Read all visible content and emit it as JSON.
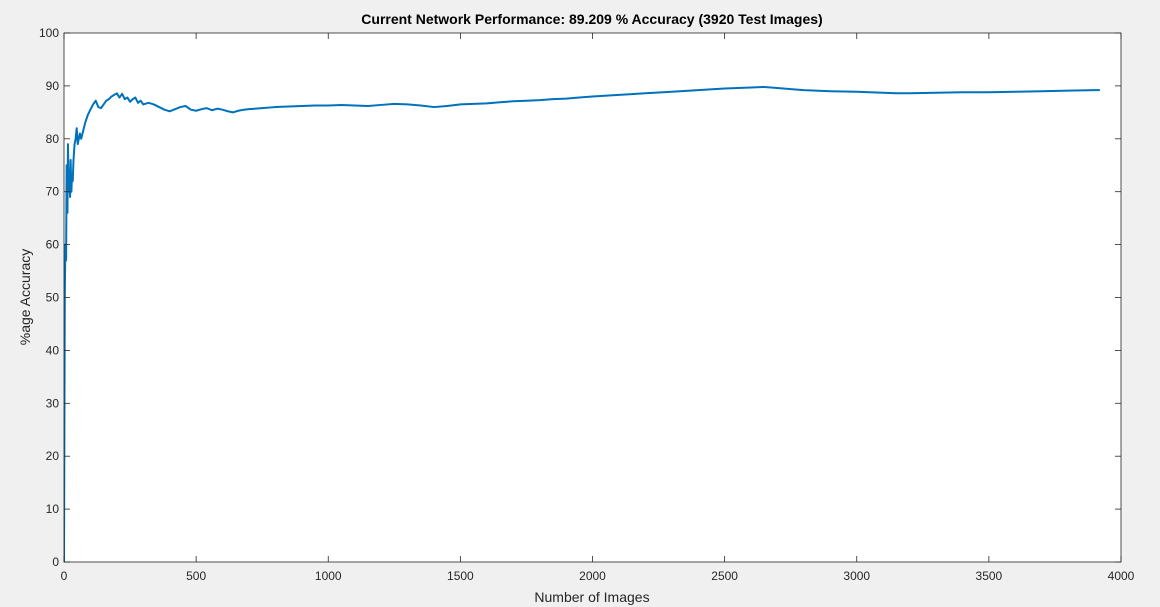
{
  "chart_data": {
    "type": "line",
    "title": "Current Network Performance: 89.209 % Accuracy (3920 Test Images)",
    "xlabel": "Number of Images",
    "ylabel": "%age Accuracy",
    "xlim": [
      0,
      4000
    ],
    "ylim": [
      0,
      100
    ],
    "xticks": [
      0,
      500,
      1000,
      1500,
      2000,
      2500,
      3000,
      3500,
      4000
    ],
    "yticks": [
      0,
      10,
      20,
      30,
      40,
      50,
      60,
      70,
      80,
      90,
      100
    ],
    "grid": false,
    "background": "#f0f0f0",
    "axes_color": "#ffffff",
    "line_color": "#0072bd",
    "series": [
      {
        "x": [
          0,
          3,
          5,
          8,
          10,
          13,
          15,
          18,
          20,
          23,
          25,
          28,
          30,
          33,
          36,
          40,
          44,
          48,
          52,
          56,
          60,
          65,
          70,
          75,
          80,
          90,
          100,
          110,
          120,
          130,
          140,
          150,
          160,
          170,
          180,
          190,
          200,
          210,
          220,
          230,
          240,
          250,
          260,
          270,
          280,
          290,
          300,
          320,
          340,
          360,
          380,
          400,
          420,
          440,
          460,
          480,
          500,
          520,
          540,
          560,
          580,
          600,
          620,
          640,
          660,
          680,
          700,
          750,
          800,
          850,
          900,
          950,
          1000,
          1050,
          1100,
          1150,
          1200,
          1250,
          1300,
          1350,
          1400,
          1450,
          1500,
          1550,
          1600,
          1650,
          1700,
          1750,
          1800,
          1850,
          1900,
          1950,
          2000,
          2100,
          2200,
          2300,
          2400,
          2500,
          2550,
          2600,
          2650,
          2700,
          2750,
          2800,
          2900,
          3000,
          3100,
          3150,
          3200,
          3300,
          3400,
          3500,
          3600,
          3700,
          3800,
          3900,
          3920
        ],
        "y": [
          0,
          50,
          60,
          57,
          75,
          66,
          79,
          70,
          74,
          69,
          76,
          70,
          73,
          72,
          76,
          79,
          80,
          82,
          79,
          80,
          81,
          80,
          81,
          82,
          83,
          84.5,
          85.5,
          86.5,
          87.2,
          86,
          85.8,
          86.5,
          87.2,
          87.5,
          88,
          88.3,
          88.6,
          87.8,
          88.5,
          87.5,
          87.8,
          87,
          87.5,
          87.8,
          86.8,
          87.2,
          86.5,
          86.8,
          86.5,
          86,
          85.5,
          85.2,
          85.6,
          86,
          86.2,
          85.5,
          85.3,
          85.6,
          85.8,
          85.4,
          85.7,
          85.5,
          85.2,
          85,
          85.3,
          85.5,
          85.6,
          85.8,
          86,
          86.1,
          86.2,
          86.3,
          86.3,
          86.4,
          86.3,
          86.2,
          86.4,
          86.6,
          86.5,
          86.3,
          86,
          86.2,
          86.5,
          86.6,
          86.7,
          86.9,
          87.1,
          87.2,
          87.3,
          87.5,
          87.6,
          87.8,
          88,
          88.3,
          88.6,
          88.9,
          89.2,
          89.5,
          89.6,
          89.7,
          89.8,
          89.6,
          89.4,
          89.2,
          89,
          88.9,
          88.7,
          88.6,
          88.6,
          88.7,
          88.8,
          88.8,
          88.9,
          89,
          89.1,
          89.2,
          89.21
        ]
      }
    ]
  }
}
